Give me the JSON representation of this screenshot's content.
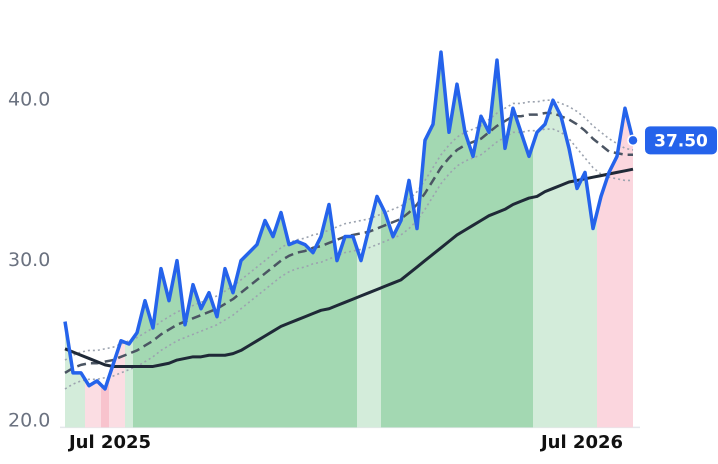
{
  "chart_data": {
    "type": "line",
    "categories": [
      null,
      null,
      null,
      null,
      null,
      null,
      "Jul 2025",
      null,
      null,
      null,
      null,
      null,
      null,
      null,
      null,
      null,
      null,
      null,
      null,
      null,
      null,
      null,
      null,
      null,
      null,
      null,
      null,
      null,
      null,
      null,
      null,
      null,
      null,
      null,
      null,
      null,
      null,
      null,
      null,
      null,
      null,
      null,
      null,
      null,
      null,
      null,
      null,
      null,
      null,
      null,
      null,
      null,
      null,
      null,
      null,
      null,
      null,
      null,
      null,
      null,
      null,
      null,
      null,
      null,
      null,
      "Jul 2026",
      null,
      null,
      null,
      null,
      null,
      null
    ],
    "ylim": [
      19.6,
      46
    ],
    "yticks": [
      {
        "value": 20,
        "label": "20.0"
      },
      {
        "value": 30,
        "label": "30.0"
      },
      {
        "value": 40,
        "label": "40.0"
      }
    ],
    "series": [
      {
        "color": "#2563eb",
        "style": "solid",
        "values": [
          26.2,
          23.0,
          23.0,
          22.2,
          22.5,
          22.0,
          23.5,
          25.0,
          24.8,
          25.5,
          27.5,
          25.8,
          29.5,
          27.5,
          30.0,
          26.0,
          28.5,
          27.0,
          28.0,
          26.5,
          29.5,
          28.0,
          30.0,
          30.5,
          31.0,
          32.5,
          31.5,
          33.0,
          31.0,
          31.2,
          31.0,
          30.5,
          31.5,
          33.5,
          30.0,
          31.5,
          31.5,
          30.0,
          32.0,
          34.0,
          33.0,
          31.5,
          32.5,
          35.0,
          32.0,
          37.5,
          38.5,
          43.0,
          38.0,
          41.0,
          38.0,
          36.5,
          39.0,
          38.0,
          42.5,
          37.0,
          39.5,
          38.0,
          36.5,
          38.0,
          38.5,
          40.0,
          39.0,
          37.0,
          34.5,
          35.5,
          32.0,
          34.0,
          35.5,
          36.5,
          39.5,
          37.5
        ],
        "fill_colors": [
          "#d3ecda",
          "#d3ecda",
          "#d3ecda",
          "#fbdde3",
          "#fbdde3",
          "#f8c3cd",
          "#fbdde3",
          "#fbdde3",
          "#d3ecda",
          "#a3d8b2",
          "#a3d8b2",
          "#a3d8b2",
          "#a3d8b2",
          "#a3d8b2",
          "#a3d8b2",
          "#a3d8b2",
          "#a3d8b2",
          "#a3d8b2",
          "#a3d8b2",
          "#a3d8b2",
          "#a3d8b2",
          "#a3d8b2",
          "#a3d8b2",
          "#a3d8b2",
          "#a3d8b2",
          "#a3d8b2",
          "#a3d8b2",
          "#a3d8b2",
          "#a3d8b2",
          "#a3d8b2",
          "#a3d8b2",
          "#a3d8b2",
          "#a3d8b2",
          "#a3d8b2",
          "#a3d8b2",
          "#a3d8b2",
          "#a3d8b2",
          "#d3ecda",
          "#d3ecda",
          "#d3ecda",
          "#a3d8b2",
          "#a3d8b2",
          "#a3d8b2",
          "#a3d8b2",
          "#a3d8b2",
          "#a3d8b2",
          "#a3d8b2",
          "#a3d8b2",
          "#a3d8b2",
          "#a3d8b2",
          "#a3d8b2",
          "#a3d8b2",
          "#a3d8b2",
          "#a3d8b2",
          "#a3d8b2",
          "#a3d8b2",
          "#a3d8b2",
          "#a3d8b2",
          "#a3d8b2",
          "#d3ecda",
          "#d3ecda",
          "#d3ecda",
          "#d3ecda",
          "#d3ecda",
          "#d3ecda",
          "#d3ecda",
          "#d3ecda",
          "#fbd6de",
          "#fbd6de",
          "#fbd6de",
          "#fbd6de",
          "#fbd6de"
        ],
        "last_value_label": "37.50"
      },
      {
        "color": "#1f2937",
        "style": "solid",
        "values": [
          24.5,
          24.3,
          24.1,
          23.9,
          23.7,
          23.5,
          23.4,
          23.4,
          23.4,
          23.4,
          23.4,
          23.4,
          23.5,
          23.6,
          23.8,
          23.9,
          24.0,
          24.0,
          24.1,
          24.1,
          24.1,
          24.2,
          24.4,
          24.7,
          25.0,
          25.3,
          25.6,
          25.9,
          26.1,
          26.3,
          26.5,
          26.7,
          26.9,
          27.0,
          27.2,
          27.4,
          27.6,
          27.8,
          28.0,
          28.2,
          28.4,
          28.6,
          28.8,
          29.2,
          29.6,
          30.0,
          30.4,
          30.8,
          31.2,
          31.6,
          31.9,
          32.2,
          32.5,
          32.8,
          33.0,
          33.2,
          33.5,
          33.7,
          33.9,
          34.0,
          34.3,
          34.5,
          34.7,
          34.9,
          35.0,
          35.1,
          35.2,
          35.3,
          35.4,
          35.5,
          35.6,
          35.7
        ]
      },
      {
        "color": "#4b5563",
        "style": "dashed",
        "values": [
          23.0,
          23.3,
          23.5,
          23.6,
          23.6,
          23.7,
          23.8,
          24.0,
          24.2,
          24.4,
          24.7,
          25.0,
          25.4,
          25.7,
          26.0,
          26.2,
          26.4,
          26.6,
          26.8,
          27.0,
          27.3,
          27.6,
          28.0,
          28.4,
          28.8,
          29.2,
          29.6,
          30.0,
          30.3,
          30.5,
          30.6,
          30.8,
          30.9,
          31.1,
          31.3,
          31.5,
          31.6,
          31.7,
          31.8,
          32.0,
          32.2,
          32.4,
          32.6,
          33.0,
          33.5,
          34.2,
          35.0,
          35.8,
          36.4,
          36.9,
          37.2,
          37.4,
          37.6,
          38.0,
          38.4,
          38.7,
          39.0,
          39.0,
          39.1,
          39.1,
          39.2,
          39.2,
          39.0,
          38.8,
          38.5,
          38.1,
          37.6,
          37.2,
          36.8,
          36.7,
          36.6,
          36.6
        ]
      },
      {
        "color": "#9ca3af",
        "style": "dotted",
        "values": [
          23.8,
          24.1,
          24.3,
          24.4,
          24.4,
          24.5,
          24.6,
          24.8,
          25.0,
          25.2,
          25.5,
          25.8,
          26.2,
          26.5,
          26.8,
          27.0,
          27.2,
          27.4,
          27.6,
          27.8,
          28.1,
          28.4,
          28.8,
          29.2,
          29.6,
          30.0,
          30.4,
          30.8,
          31.1,
          31.3,
          31.4,
          31.6,
          31.7,
          31.9,
          32.1,
          32.3,
          32.4,
          32.5,
          32.6,
          32.8,
          33.0,
          33.2,
          33.4,
          33.8,
          34.3,
          35.0,
          35.8,
          36.6,
          37.2,
          37.7,
          38.0,
          38.2,
          38.4,
          38.8,
          39.2,
          39.5,
          39.8,
          39.8,
          39.9,
          39.9,
          40.0,
          40.0,
          39.8,
          39.6,
          39.3,
          38.9,
          38.4,
          38.0,
          37.6,
          37.3,
          37.0,
          36.9
        ]
      },
      {
        "color": "#9ca3af",
        "style": "dotted",
        "values": [
          22.0,
          22.3,
          22.5,
          22.6,
          22.6,
          22.7,
          22.8,
          23.0,
          23.2,
          23.4,
          23.7,
          24.0,
          24.4,
          24.7,
          25.0,
          25.2,
          25.4,
          25.6,
          25.8,
          26.0,
          26.3,
          26.6,
          27.0,
          27.4,
          27.8,
          28.2,
          28.6,
          29.0,
          29.3,
          29.5,
          29.6,
          29.8,
          29.9,
          30.1,
          30.3,
          30.5,
          30.6,
          30.7,
          30.8,
          31.0,
          31.2,
          31.4,
          31.6,
          32.0,
          32.5,
          33.2,
          34.0,
          34.8,
          35.4,
          35.9,
          36.2,
          36.4,
          36.6,
          37.0,
          37.4,
          37.7,
          38.0,
          38.0,
          38.1,
          38.1,
          38.2,
          38.2,
          38.0,
          37.6,
          37.0,
          36.4,
          35.8,
          35.4,
          35.2,
          35.1,
          35.0,
          35.0
        ]
      }
    ]
  }
}
